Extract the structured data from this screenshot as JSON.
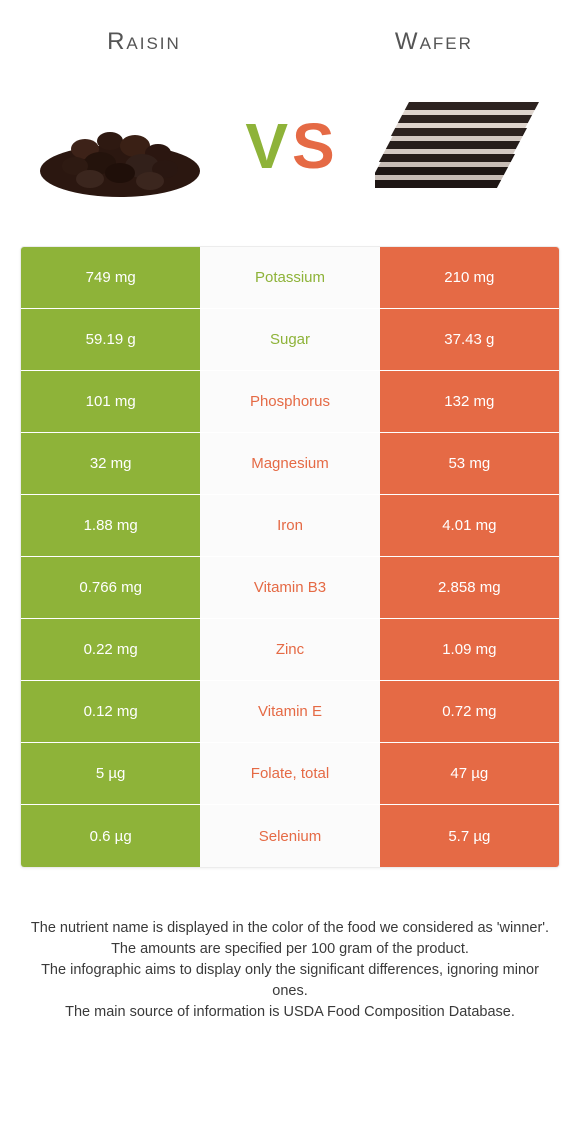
{
  "colors": {
    "left": "#8eb339",
    "right": "#e56a45",
    "mid_bg": "#fbfbfb",
    "vs_letter_left": "#8eb339",
    "vs_letter_right": "#e56a45",
    "title_text": "#555555",
    "footer_text": "#3a3a3a",
    "row_text": "#ffffff"
  },
  "header": {
    "left_title": "Raisin",
    "right_title": "Wafer"
  },
  "vs": {
    "left": "V",
    "right": "S"
  },
  "rows": [
    {
      "label": "Potassium",
      "left": "749 mg",
      "right": "210 mg",
      "winner": "left"
    },
    {
      "label": "Sugar",
      "left": "59.19 g",
      "right": "37.43 g",
      "winner": "left"
    },
    {
      "label": "Phosphorus",
      "left": "101 mg",
      "right": "132 mg",
      "winner": "right"
    },
    {
      "label": "Magnesium",
      "left": "32 mg",
      "right": "53 mg",
      "winner": "right"
    },
    {
      "label": "Iron",
      "left": "1.88 mg",
      "right": "4.01 mg",
      "winner": "right"
    },
    {
      "label": "Vitamin B3",
      "left": "0.766 mg",
      "right": "2.858 mg",
      "winner": "right"
    },
    {
      "label": "Zinc",
      "left": "0.22 mg",
      "right": "1.09 mg",
      "winner": "right"
    },
    {
      "label": "Vitamin E",
      "left": "0.12 mg",
      "right": "0.72 mg",
      "winner": "right"
    },
    {
      "label": "Folate, total",
      "left": "5 µg",
      "right": "47 µg",
      "winner": "right"
    },
    {
      "label": "Selenium",
      "left": "0.6 µg",
      "right": "5.7 µg",
      "winner": "right"
    }
  ],
  "footer": [
    "The nutrient name is displayed in the color of the food we considered as 'winner'.",
    "The amounts are specified per 100 gram of the product.",
    "The infographic aims to display only the significant differences, ignoring minor ones.",
    "The main source of information is USDA Food Composition Database."
  ]
}
